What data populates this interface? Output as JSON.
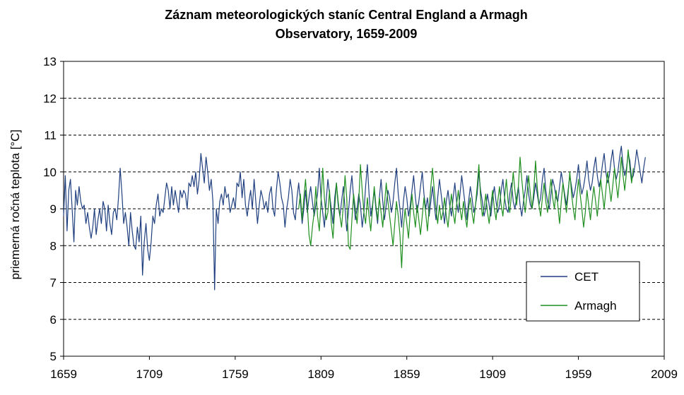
{
  "chart_data": {
    "type": "line",
    "title_lines": [
      "Záznam meteorologických staníc Central England a Armagh",
      "Observatory, 1659-2009"
    ],
    "xlabel": "",
    "ylabel": "priemerná ročná teplota [°C]",
    "xlim": [
      1659,
      2009
    ],
    "ylim": [
      5,
      13
    ],
    "x_ticks": [
      "1659",
      "1709",
      "1759",
      "1809",
      "1859",
      "1909",
      "1959",
      "2009"
    ],
    "y_ticks": [
      "5",
      "6",
      "7",
      "8",
      "9",
      "10",
      "11",
      "12",
      "13"
    ],
    "grid": "horizontal-dashed",
    "legend_position": "bottom-right",
    "series": [
      {
        "name": "CET",
        "color": "#1f3f7f",
        "x_start": 1659,
        "values": [
          8.8,
          9.9,
          8.4,
          9.5,
          9.8,
          9.0,
          8.1,
          9.5,
          9.1,
          9.6,
          9.2,
          9.0,
          9.1,
          8.6,
          8.9,
          8.5,
          8.2,
          8.5,
          9.0,
          8.3,
          8.7,
          9.0,
          8.6,
          9.2,
          9.0,
          8.4,
          9.1,
          8.6,
          8.3,
          8.9,
          9.0,
          8.7,
          9.3,
          10.1,
          9.4,
          8.6,
          8.9,
          8.5,
          8.0,
          8.9,
          8.4,
          8.0,
          7.9,
          8.5,
          8.1,
          8.8,
          7.2,
          8.1,
          8.6,
          7.9,
          7.6,
          8.1,
          8.8,
          8.6,
          9.1,
          9.4,
          8.8,
          9.0,
          8.9,
          9.3,
          9.7,
          9.5,
          9.0,
          9.6,
          9.1,
          9.5,
          9.2,
          8.9,
          9.5,
          9.3,
          9.5,
          9.4,
          9.0,
          9.7,
          9.6,
          9.9,
          9.6,
          10.0,
          9.4,
          9.8,
          10.5,
          10.1,
          9.7,
          10.4,
          10.0,
          9.5,
          9.8,
          9.2,
          6.8,
          9.0,
          8.6,
          9.2,
          9.4,
          9.1,
          9.6,
          9.3,
          9.4,
          8.9,
          9.1,
          9.3,
          9.0,
          9.7,
          9.6,
          10.0,
          9.3,
          9.8,
          9.1,
          8.8,
          9.2,
          9.5,
          9.0,
          9.8,
          9.2,
          8.6,
          9.1,
          9.5,
          9.3,
          9.0,
          9.2,
          8.9,
          9.4,
          9.6,
          9.0,
          8.8,
          9.5,
          10.0,
          9.7,
          9.3,
          9.1,
          8.5,
          9.0,
          9.3,
          9.8,
          9.5,
          8.9,
          8.7,
          9.3,
          9.7,
          9.2,
          8.6,
          9.0,
          9.5,
          8.9,
          9.3,
          9.6,
          9.2,
          8.8,
          9.1,
          9.4,
          10.1,
          9.3,
          8.9,
          8.5,
          9.2,
          9.8,
          9.4,
          9.0,
          8.6,
          9.3,
          9.7,
          9.1,
          8.8,
          9.2,
          9.6,
          9.0,
          8.4,
          8.9,
          9.5,
          9.9,
          9.3,
          8.7,
          9.0,
          9.4,
          9.1,
          8.5,
          8.9,
          9.6,
          10.2,
          9.4,
          8.8,
          9.1,
          9.5,
          9.0,
          8.6,
          9.3,
          9.8,
          9.2,
          8.7,
          9.1,
          9.5,
          9.3,
          8.9,
          9.2,
          9.7,
          10.1,
          9.4,
          9.0,
          8.5,
          9.2,
          9.6,
          9.3,
          8.8,
          9.1,
          9.5,
          9.9,
          9.3,
          8.9,
          9.2,
          9.6,
          10.0,
          9.4,
          9.0,
          9.3,
          8.8,
          9.2,
          9.6,
          9.1,
          8.7,
          9.3,
          9.8,
          9.4,
          9.0,
          8.6,
          9.2,
          9.5,
          9.1,
          8.8,
          9.3,
          9.7,
          9.2,
          8.9,
          9.4,
          9.9,
          9.5,
          9.1,
          8.7,
          9.2,
          9.6,
          9.3,
          8.9,
          9.1,
          9.4,
          10.0,
          9.5,
          9.2,
          8.8,
          9.0,
          9.4,
          9.1,
          8.8,
          9.3,
          9.6,
          9.2,
          8.9,
          9.1,
          9.5,
          9.8,
          9.3,
          9.0,
          8.9,
          9.4,
          9.7,
          9.2,
          9.0,
          9.3,
          9.6,
          9.1,
          8.8,
          9.2,
          9.5,
          9.9,
          9.4,
          9.1,
          9.0,
          9.3,
          9.7,
          9.4,
          9.1,
          9.3,
          9.8,
          10.1,
          9.5,
          9.2,
          9.0,
          9.4,
          9.8,
          9.6,
          9.3,
          9.2,
          9.6,
          10.0,
          9.7,
          9.4,
          9.1,
          9.5,
          9.9,
          9.6,
          9.3,
          9.5,
          9.8,
          10.2,
          9.7,
          9.4,
          9.6,
          9.9,
          10.3,
          9.8,
          9.5,
          9.7,
          10.1,
          10.4,
          9.9,
          9.6,
          9.8,
          10.2,
          10.5,
          10.0,
          9.7,
          9.9,
          10.3,
          10.6,
          10.1,
          9.8,
          10.0,
          10.4,
          10.7,
          10.2,
          9.9,
          10.1,
          10.5,
          10.3,
          9.8,
          9.9,
          10.2,
          10.6,
          10.3,
          10.0,
          9.7,
          10.1,
          10.4
        ]
      },
      {
        "name": "Armagh",
        "color": "#1f8f1f",
        "x_start": 1796,
        "values": [
          9.0,
          9.4,
          8.7,
          9.3,
          9.8,
          9.1,
          8.3,
          8.0,
          8.5,
          8.9,
          9.6,
          8.8,
          8.4,
          9.2,
          10.1,
          9.3,
          8.7,
          8.9,
          9.5,
          8.6,
          8.2,
          9.0,
          9.7,
          9.2,
          8.8,
          8.5,
          9.1,
          9.9,
          9.3,
          8.0,
          7.9,
          8.7,
          9.4,
          9.0,
          8.6,
          9.2,
          10.2,
          9.5,
          8.9,
          8.6,
          9.3,
          8.8,
          8.4,
          9.0,
          9.6,
          9.1,
          8.7,
          9.3,
          8.9,
          8.5,
          9.1,
          9.7,
          9.2,
          8.8,
          8.4,
          8.0,
          8.6,
          9.2,
          8.8,
          8.3,
          7.4,
          8.5,
          9.0,
          8.6,
          8.2,
          8.9,
          9.4,
          8.9,
          8.5,
          9.1,
          8.7,
          8.3,
          8.8,
          9.3,
          8.9,
          8.4,
          9.0,
          9.6,
          10.1,
          9.5,
          9.0,
          8.6,
          9.1,
          8.7,
          8.9,
          9.3,
          8.8,
          8.5,
          9.0,
          9.4,
          8.9,
          8.6,
          9.1,
          9.5,
          9.0,
          8.7,
          9.2,
          8.8,
          8.5,
          9.0,
          9.3,
          8.9,
          8.6,
          9.1,
          9.6,
          10.2,
          9.3,
          8.8,
          9.0,
          9.4,
          8.9,
          8.6,
          9.1,
          9.5,
          9.0,
          8.7,
          9.2,
          9.6,
          9.1,
          8.8,
          9.3,
          9.8,
          9.2,
          8.9,
          9.4,
          10.0,
          9.5,
          9.1,
          9.6,
          10.4,
          9.8,
          9.3,
          8.9,
          9.4,
          9.9,
          9.4,
          9.0,
          9.5,
          10.3,
          9.6,
          9.1,
          8.8,
          9.3,
          9.7,
          9.2,
          8.9,
          9.4,
          9.8,
          9.3,
          9.0,
          9.5,
          9.1,
          8.6,
          9.2,
          9.7,
          9.3,
          8.9,
          9.4,
          10.0,
          9.4,
          9.0,
          8.7,
          9.3,
          9.8,
          9.4,
          9.0,
          8.5,
          8.9,
          9.5,
          9.1,
          8.7,
          9.2,
          9.6,
          9.2,
          8.8,
          9.3,
          9.8,
          9.4,
          9.0,
          9.5,
          10.0,
          9.6,
          9.2,
          9.6,
          10.1,
          9.7,
          9.3,
          9.8,
          10.4,
          9.9,
          9.5,
          10.0,
          10.6,
          10.1,
          9.7,
          10.1
        ]
      }
    ]
  }
}
